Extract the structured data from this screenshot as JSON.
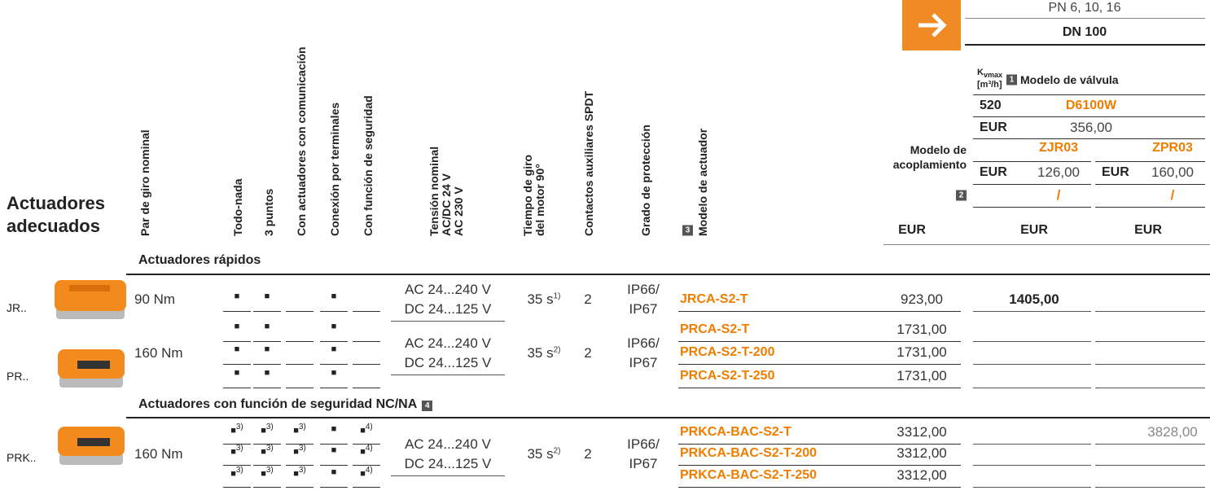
{
  "header": {
    "pn": "PN 6, 10, 16",
    "dn": "DN 100",
    "kv_symbol": "K",
    "kv_subscript": "vmax",
    "kv_unit": "[m³/h]",
    "valve_badge": "1",
    "valve_label": "Modelo de válvula",
    "kvs": "520",
    "valve_model": "D6100W",
    "valve_currency": "EUR",
    "valve_price": "356,00",
    "coupling_label": [
      "Modelo de",
      "acoplamiento"
    ],
    "couplings": [
      {
        "model": "ZJR03",
        "currency": "EUR",
        "price": "126,00",
        "slash": "/",
        "total_currency": "EUR"
      },
      {
        "model": "ZPR03",
        "currency": "EUR",
        "price": "160,00",
        "slash": "/",
        "total_currency": "EUR"
      }
    ],
    "badge2": "2",
    "actuators_title": [
      "Actuadores",
      "adecuados"
    ],
    "columns": [
      [
        "Par de giro nominal"
      ],
      [
        "Todo-nada"
      ],
      [
        "3 puntos"
      ],
      [
        "Con actuadores con comunicación"
      ],
      [
        "Conexión por terminales"
      ],
      [
        "Con función de seguridad"
      ],
      [
        "Tensión nominal",
        "AC/DC 24 V",
        "AC 230 V"
      ],
      [
        "Tiempo de giro",
        "del motor 90°"
      ],
      [
        "Contactos auxiliares SPDT"
      ],
      [
        "Grado de protección"
      ],
      [
        "Modelo de actuador"
      ]
    ],
    "model_badge": "3",
    "price_currency": "EUR"
  },
  "sections": [
    {
      "title": "Actuadores rápidos",
      "groups": [
        {
          "label": "JR..",
          "torque": "90 Nm",
          "voltage": [
            "AC 24...240 V",
            "DC 24...125 V"
          ],
          "time": "35 s",
          "time_note": "1)",
          "contacts": "2",
          "protection": [
            "IP66/",
            "IP67"
          ],
          "rows": [
            {
              "marks": [
                "■",
                "■",
                null,
                "■",
                null
              ],
              "model": "JRCA-S2-T",
              "price": "923,00",
              "totals": [
                "1405,00",
                null
              ]
            }
          ]
        },
        {
          "label": "PR..",
          "torque": "160 Nm",
          "voltage": [
            "AC 24...240 V",
            "DC 24...125 V"
          ],
          "time": "35 s",
          "time_note": "2)",
          "contacts": "2",
          "protection": [
            "IP66/",
            "IP67"
          ],
          "rows": [
            {
              "marks": [
                "■",
                "■",
                null,
                "■",
                null
              ],
              "model": "PRCA-S2-T",
              "price": "1731,00",
              "totals": [
                null,
                null
              ]
            },
            {
              "marks": [
                "■",
                "■",
                null,
                "■",
                null
              ],
              "model": "PRCA-S2-T-200",
              "price": "1731,00",
              "totals": [
                null,
                null
              ]
            },
            {
              "marks": [
                "■",
                "■",
                null,
                "■",
                null
              ],
              "model": "PRCA-S2-T-250",
              "price": "1731,00",
              "totals": [
                null,
                null
              ]
            }
          ]
        }
      ]
    },
    {
      "title": "Actuadores con función de seguridad NC/NA",
      "badge": "4",
      "groups": [
        {
          "label": "PRK..",
          "torque": "160 Nm",
          "voltage": [
            "AC 24...240 V",
            "DC 24...125 V"
          ],
          "time": "35 s",
          "time_note": "2)",
          "contacts": "2",
          "protection": [
            "IP66/",
            "IP67"
          ],
          "rows": [
            {
              "marks": [
                "■",
                "■",
                "■",
                "■",
                "■"
              ],
              "notes": [
                "3)",
                "3)",
                "3)",
                null,
                "4)"
              ],
              "model": "PRKCA-BAC-S2-T",
              "price": "3312,00",
              "totals": [
                null,
                "3828,00"
              ]
            },
            {
              "marks": [
                "■",
                "■",
                "■",
                "■",
                "■"
              ],
              "notes": [
                "3)",
                "3)",
                "3)",
                null,
                "4)"
              ],
              "model": "PRKCA-BAC-S2-T-200",
              "price": "3312,00",
              "totals": [
                null,
                null
              ]
            },
            {
              "marks": [
                "■",
                "■",
                "■",
                "■",
                "■"
              ],
              "notes": [
                "3)",
                "3)",
                "3)",
                null,
                "4)"
              ],
              "model": "PRKCA-BAC-S2-T-250",
              "price": "3312,00",
              "totals": [
                null,
                null
              ]
            }
          ]
        }
      ]
    }
  ]
}
